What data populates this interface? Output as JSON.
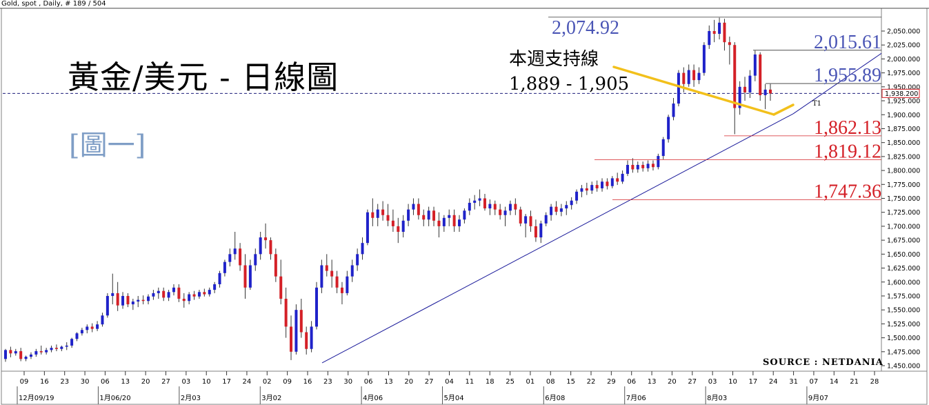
{
  "header": {
    "title": "Gold, spot , Daily, # 189 / 504"
  },
  "annotations": {
    "main_title": "黃金/美元 - 日線圖",
    "figure_tag": "[圖一]",
    "support_title": "本週支持線",
    "support_range": "1,889 - 1,905",
    "source": "SOURCE : NETDANIA",
    "trend_tag": "T1",
    "colors": {
      "up": "#1f22c9",
      "down": "#d42027",
      "trendline": "#1a1a9a",
      "arrow": "#f2c01b",
      "blue_label": "#4a55b5",
      "red_label": "#d42027"
    }
  },
  "chart_data": {
    "type": "candlestick",
    "title": "Gold, spot , Daily",
    "ylim": [
      1440,
      2080
    ],
    "y_ticks": [
      1450,
      1475,
      1500,
      1525,
      1550,
      1575,
      1600,
      1625,
      1650,
      1675,
      1700,
      1725,
      1750,
      1775,
      1800,
      1825,
      1850,
      1875,
      1900,
      1925,
      1950,
      1975,
      2000,
      2025,
      2050
    ],
    "y_tick_labels": [
      "1,450.000",
      "1,475.000",
      "1,500.000",
      "1,525.000",
      "1,550.000",
      "1,575.000",
      "1,600.000",
      "1,625.000",
      "1,650.000",
      "1,675.000",
      "1,700.000",
      "1,725.000",
      "1,750.000",
      "1,775.000",
      "1,800.000",
      "1,825.000",
      "1,850.000",
      "1,875.000",
      "1,900.000",
      "1,925.000",
      "1,950.000",
      "1,975.000",
      "2,000.000",
      "2,025.000",
      "2,050.000"
    ],
    "current_price": 1938.2,
    "current_price_label": "1,938.200",
    "x_tick_labels": [
      "09",
      "16",
      "23",
      "30",
      "06",
      "13",
      "20",
      "27",
      "03",
      "10",
      "17",
      "24",
      "02",
      "09",
      "16",
      "23",
      "30",
      "06",
      "13",
      "20",
      "27",
      "04",
      "11",
      "18",
      "25",
      "01",
      "08",
      "15",
      "22",
      "29",
      "06",
      "13",
      "20",
      "27",
      "03",
      "10",
      "17",
      "24",
      "31",
      "07",
      "14",
      "21",
      "28"
    ],
    "month_labels": [
      "12月09/19",
      "1月06/20",
      "2月03",
      "3月02",
      "4月06",
      "5月04",
      "6月08",
      "7月06",
      "8月03",
      "9月07"
    ],
    "levels": [
      {
        "label": "2,074.92",
        "value": 2074.92,
        "color": "blue"
      },
      {
        "label": "2,015.61",
        "value": 2015.61,
        "color": "blue"
      },
      {
        "label": "1,955.89",
        "value": 1955.89,
        "color": "blue"
      },
      {
        "label": "1,862.13",
        "value": 1862.13,
        "color": "red"
      },
      {
        "label": "1,819.12",
        "value": 1819.12,
        "color": "red"
      },
      {
        "label": "1,747.36",
        "value": 1747.36,
        "color": "red"
      }
    ],
    "trendline": {
      "from_price": 1455,
      "to_price": 1914,
      "label": "T1"
    },
    "candles": [
      [
        1462,
        1480,
        1457,
        1478
      ],
      [
        1478,
        1484,
        1465,
        1472
      ],
      [
        1472,
        1480,
        1468,
        1476
      ],
      [
        1476,
        1482,
        1458,
        1462
      ],
      [
        1462,
        1468,
        1458,
        1466
      ],
      [
        1466,
        1474,
        1462,
        1470
      ],
      [
        1470,
        1480,
        1466,
        1476
      ],
      [
        1476,
        1486,
        1470,
        1474
      ],
      [
        1474,
        1482,
        1470,
        1478
      ],
      [
        1478,
        1486,
        1474,
        1482
      ],
      [
        1482,
        1488,
        1476,
        1480
      ],
      [
        1480,
        1486,
        1476,
        1484
      ],
      [
        1484,
        1492,
        1478,
        1486
      ],
      [
        1486,
        1500,
        1482,
        1498
      ],
      [
        1498,
        1510,
        1494,
        1508
      ],
      [
        1508,
        1518,
        1504,
        1514
      ],
      [
        1514,
        1524,
        1508,
        1520
      ],
      [
        1520,
        1526,
        1510,
        1516
      ],
      [
        1516,
        1530,
        1512,
        1524
      ],
      [
        1524,
        1545,
        1520,
        1540
      ],
      [
        1540,
        1580,
        1536,
        1575
      ],
      [
        1575,
        1615,
        1560,
        1580
      ],
      [
        1580,
        1600,
        1548,
        1558
      ],
      [
        1558,
        1582,
        1552,
        1575
      ],
      [
        1575,
        1580,
        1555,
        1560
      ],
      [
        1560,
        1570,
        1550,
        1565
      ],
      [
        1565,
        1575,
        1555,
        1568
      ],
      [
        1568,
        1576,
        1560,
        1566
      ],
      [
        1566,
        1578,
        1560,
        1574
      ],
      [
        1574,
        1586,
        1568,
        1580
      ],
      [
        1580,
        1590,
        1570,
        1584
      ],
      [
        1584,
        1590,
        1566,
        1572
      ],
      [
        1572,
        1586,
        1566,
        1582
      ],
      [
        1582,
        1596,
        1576,
        1590
      ],
      [
        1590,
        1596,
        1564,
        1570
      ],
      [
        1570,
        1580,
        1554,
        1566
      ],
      [
        1566,
        1582,
        1560,
        1578
      ],
      [
        1578,
        1584,
        1568,
        1574
      ],
      [
        1574,
        1586,
        1570,
        1582
      ],
      [
        1582,
        1588,
        1574,
        1578
      ],
      [
        1578,
        1590,
        1574,
        1586
      ],
      [
        1586,
        1600,
        1580,
        1596
      ],
      [
        1596,
        1620,
        1590,
        1616
      ],
      [
        1616,
        1640,
        1610,
        1636
      ],
      [
        1636,
        1660,
        1628,
        1650
      ],
      [
        1650,
        1690,
        1640,
        1660
      ],
      [
        1660,
        1670,
        1620,
        1630
      ],
      [
        1630,
        1650,
        1570,
        1590
      ],
      [
        1590,
        1640,
        1586,
        1630
      ],
      [
        1630,
        1660,
        1620,
        1650
      ],
      [
        1650,
        1690,
        1640,
        1680
      ],
      [
        1680,
        1705,
        1660,
        1675
      ],
      [
        1675,
        1680,
        1640,
        1650
      ],
      [
        1650,
        1660,
        1600,
        1610
      ],
      [
        1610,
        1640,
        1560,
        1570
      ],
      [
        1570,
        1590,
        1500,
        1520
      ],
      [
        1520,
        1540,
        1460,
        1475
      ],
      [
        1475,
        1560,
        1470,
        1550
      ],
      [
        1550,
        1570,
        1500,
        1510
      ],
      [
        1510,
        1520,
        1470,
        1480
      ],
      [
        1480,
        1530,
        1474,
        1520
      ],
      [
        1520,
        1600,
        1515,
        1590
      ],
      [
        1590,
        1640,
        1580,
        1630
      ],
      [
        1630,
        1650,
        1610,
        1620
      ],
      [
        1620,
        1640,
        1590,
        1610
      ],
      [
        1610,
        1620,
        1580,
        1590
      ],
      [
        1590,
        1600,
        1560,
        1580
      ],
      [
        1580,
        1620,
        1576,
        1610
      ],
      [
        1610,
        1640,
        1600,
        1630
      ],
      [
        1630,
        1660,
        1620,
        1650
      ],
      [
        1650,
        1680,
        1640,
        1670
      ],
      [
        1670,
        1730,
        1666,
        1725
      ],
      [
        1725,
        1750,
        1700,
        1715
      ],
      [
        1715,
        1740,
        1700,
        1730
      ],
      [
        1730,
        1745,
        1710,
        1720
      ],
      [
        1720,
        1740,
        1700,
        1710
      ],
      [
        1710,
        1730,
        1690,
        1700
      ],
      [
        1700,
        1715,
        1670,
        1690
      ],
      [
        1690,
        1720,
        1680,
        1710
      ],
      [
        1710,
        1740,
        1700,
        1730
      ],
      [
        1730,
        1750,
        1720,
        1740
      ],
      [
        1740,
        1750,
        1712,
        1720
      ],
      [
        1720,
        1730,
        1700,
        1712
      ],
      [
        1712,
        1735,
        1700,
        1728
      ],
      [
        1728,
        1735,
        1700,
        1710
      ],
      [
        1710,
        1725,
        1680,
        1700
      ],
      [
        1700,
        1720,
        1690,
        1715
      ],
      [
        1715,
        1730,
        1700,
        1720
      ],
      [
        1720,
        1730,
        1690,
        1700
      ],
      [
        1700,
        1720,
        1690,
        1712
      ],
      [
        1712,
        1732,
        1705,
        1728
      ],
      [
        1728,
        1750,
        1720,
        1742
      ],
      [
        1742,
        1756,
        1730,
        1746
      ],
      [
        1746,
        1766,
        1736,
        1750
      ],
      [
        1750,
        1758,
        1728,
        1732
      ],
      [
        1732,
        1748,
        1720,
        1740
      ],
      [
        1740,
        1746,
        1720,
        1730
      ],
      [
        1730,
        1740,
        1712,
        1720
      ],
      [
        1720,
        1735,
        1700,
        1728
      ],
      [
        1728,
        1746,
        1720,
        1740
      ],
      [
        1740,
        1750,
        1720,
        1730
      ],
      [
        1730,
        1735,
        1700,
        1705
      ],
      [
        1705,
        1722,
        1680,
        1718
      ],
      [
        1718,
        1728,
        1690,
        1700
      ],
      [
        1700,
        1712,
        1672,
        1680
      ],
      [
        1680,
        1710,
        1670,
        1705
      ],
      [
        1705,
        1725,
        1700,
        1720
      ],
      [
        1720,
        1740,
        1710,
        1735
      ],
      [
        1735,
        1745,
        1720,
        1726
      ],
      [
        1726,
        1740,
        1718,
        1732
      ],
      [
        1732,
        1745,
        1720,
        1738
      ],
      [
        1738,
        1752,
        1730,
        1746
      ],
      [
        1746,
        1766,
        1740,
        1762
      ],
      [
        1762,
        1774,
        1752,
        1768
      ],
      [
        1768,
        1778,
        1756,
        1764
      ],
      [
        1764,
        1780,
        1758,
        1774
      ],
      [
        1774,
        1782,
        1762,
        1768
      ],
      [
        1768,
        1786,
        1762,
        1780
      ],
      [
        1780,
        1786,
        1766,
        1772
      ],
      [
        1772,
        1790,
        1768,
        1786
      ],
      [
        1786,
        1796,
        1774,
        1780
      ],
      [
        1780,
        1800,
        1776,
        1794
      ],
      [
        1794,
        1818,
        1790,
        1810
      ],
      [
        1810,
        1822,
        1796,
        1802
      ],
      [
        1802,
        1816,
        1796,
        1810
      ],
      [
        1810,
        1816,
        1798,
        1804
      ],
      [
        1804,
        1818,
        1798,
        1812
      ],
      [
        1812,
        1818,
        1800,
        1806
      ],
      [
        1806,
        1830,
        1802,
        1826
      ],
      [
        1826,
        1860,
        1820,
        1856
      ],
      [
        1856,
        1900,
        1850,
        1896
      ],
      [
        1896,
        1930,
        1890,
        1920
      ],
      [
        1920,
        1980,
        1915,
        1975
      ],
      [
        1975,
        1985,
        1940,
        1955
      ],
      [
        1955,
        1990,
        1950,
        1980
      ],
      [
        1980,
        1990,
        1950,
        1962
      ],
      [
        1962,
        1985,
        1955,
        1975
      ],
      [
        1975,
        2030,
        1970,
        2025
      ],
      [
        2025,
        2060,
        2018,
        2050
      ],
      [
        2050,
        2070,
        2030,
        2045
      ],
      [
        2045,
        2074,
        2035,
        2065
      ],
      [
        2065,
        2072,
        2015,
        2030
      ],
      [
        2030,
        2040,
        1990,
        2025
      ],
      [
        2025,
        2030,
        1865,
        1912
      ],
      [
        1912,
        1960,
        1900,
        1950
      ],
      [
        1950,
        1968,
        1925,
        1940
      ],
      [
        1940,
        1980,
        1930,
        1970
      ],
      [
        1970,
        2015,
        1960,
        2008
      ],
      [
        2008,
        2012,
        1925,
        1935
      ],
      [
        1935,
        1955,
        1910,
        1945
      ],
      [
        1945,
        1955,
        1925,
        1938
      ]
    ]
  }
}
